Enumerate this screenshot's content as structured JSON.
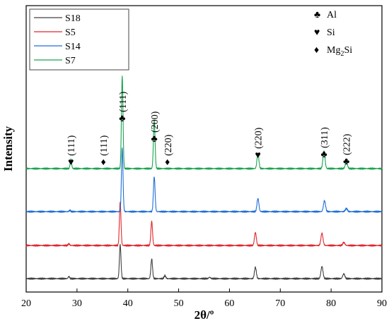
{
  "chart_data": {
    "type": "line",
    "title": "",
    "xlabel": "2θ/º",
    "ylabel": "Intensity",
    "xlim": [
      20,
      90
    ],
    "xticks": [
      20,
      30,
      40,
      50,
      60,
      70,
      80,
      90
    ],
    "grid": false,
    "legend_position": "top-left",
    "series": [
      {
        "name": "S18",
        "color": "#404040",
        "baseline": 0.0,
        "peaks": [
          [
            28.4,
            0.05
          ],
          [
            38.5,
            0.78
          ],
          [
            44.7,
            0.45
          ],
          [
            47.3,
            0.07
          ],
          [
            56.1,
            0.03
          ],
          [
            65.1,
            0.26
          ],
          [
            78.2,
            0.28
          ],
          [
            82.5,
            0.11
          ]
        ]
      },
      {
        "name": "S5",
        "color": "#e0262b",
        "baseline": 1.5,
        "peaks": [
          [
            28.4,
            0.04
          ],
          [
            38.5,
            1.0
          ],
          [
            44.7,
            0.55
          ],
          [
            65.1,
            0.3
          ],
          [
            78.2,
            0.28
          ],
          [
            82.5,
            0.07
          ]
        ]
      },
      {
        "name": "S14",
        "color": "#1f6fd6",
        "baseline": 3.0,
        "peaks": [
          [
            28.6,
            0.03
          ],
          [
            38.9,
            1.45
          ],
          [
            45.2,
            0.8
          ],
          [
            65.6,
            0.3
          ],
          [
            78.7,
            0.25
          ],
          [
            83.0,
            0.07
          ]
        ]
      },
      {
        "name": "S7",
        "color": "#1aa34f",
        "baseline": 4.6,
        "peaks": [
          [
            28.8,
            0.22
          ],
          [
            38.9,
            2.12
          ],
          [
            45.2,
            1.1
          ],
          [
            65.6,
            0.35
          ],
          [
            78.6,
            0.4
          ],
          [
            83.0,
            0.15
          ]
        ]
      }
    ],
    "annotations": [
      {
        "symbol": "♥",
        "label": "(111)",
        "x": 28.8
      },
      {
        "symbol": "♦",
        "label": "(111)",
        "x": 35.2
      },
      {
        "symbol": "♣",
        "label": "(111)",
        "x": 38.9
      },
      {
        "symbol": "♣",
        "label": "(200)",
        "x": 45.2
      },
      {
        "symbol": "♦",
        "label": "(220)",
        "x": 47.8
      },
      {
        "symbol": "♥",
        "label": "(220)",
        "x": 65.6
      },
      {
        "symbol": "♣",
        "label": "(311)",
        "x": 78.6
      },
      {
        "symbol": "♣",
        "label": "(222)",
        "x": 83.0
      }
    ],
    "phase_legend": [
      {
        "symbol": "♣",
        "label": "Al"
      },
      {
        "symbol": "♥",
        "label": "Si"
      },
      {
        "symbol": "♦",
        "label_main": "Mg",
        "label_sub": "2",
        "label_tail": "Si"
      }
    ]
  }
}
